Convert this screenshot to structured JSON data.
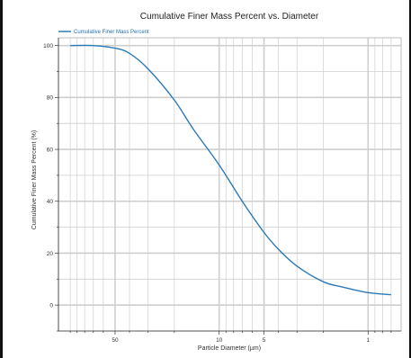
{
  "chart_data": {
    "type": "line",
    "title": "Cumulative Finer Mass Percent vs. Diameter",
    "xlabel": "Particle Diameter (µm)",
    "ylabel": "Cumulative Finer Mass Percent (%)",
    "x_scale": "log",
    "x_reversed": true,
    "xlim": [
      0.6,
      120
    ],
    "ylim": [
      -10,
      103
    ],
    "x_ticks": [
      50,
      10,
      5,
      1
    ],
    "y_ticks": [
      0,
      20,
      40,
      60,
      80,
      100
    ],
    "grid": true,
    "legend_position": "top-left",
    "colors": {
      "series": "#2a7ab8",
      "grid": "#cfcfcf",
      "axis": "#333333"
    },
    "series": [
      {
        "name": "Cumulative Finer Mass Percent",
        "x": [
          100,
          70,
          50,
          40,
          30,
          20,
          15,
          10,
          7,
          5,
          4,
          3,
          2,
          1.5,
          1,
          0.7
        ],
        "y": [
          100,
          100,
          99,
          97,
          91,
          79,
          68,
          54,
          40,
          28,
          21.5,
          15,
          9,
          7,
          4.8,
          4
        ]
      }
    ]
  }
}
